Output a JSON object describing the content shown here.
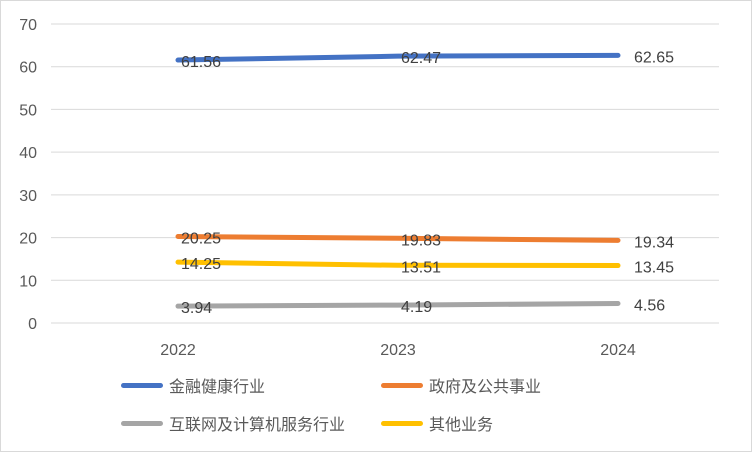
{
  "chart_data": {
    "type": "line",
    "title": "",
    "xlabel": "",
    "ylabel": "",
    "x": [
      "2022",
      "2023",
      "2024"
    ],
    "ylim": [
      0,
      70
    ],
    "yticks": [
      0,
      10,
      20,
      30,
      40,
      50,
      60,
      70
    ],
    "grid": true,
    "legend_position": "bottom",
    "series": [
      {
        "name": "金融健康行业",
        "values": [
          61.56,
          62.47,
          62.65
        ],
        "color": "#4472C4"
      },
      {
        "name": "政府及公共事业",
        "values": [
          20.25,
          19.83,
          19.34
        ],
        "color": "#ED7D31"
      },
      {
        "name": "互联网及计算机服务行业",
        "values": [
          3.94,
          4.19,
          4.56
        ],
        "color": "#A5A5A5"
      },
      {
        "name": "其他业务",
        "values": [
          14.25,
          13.51,
          13.45
        ],
        "color": "#FFC000"
      }
    ]
  }
}
